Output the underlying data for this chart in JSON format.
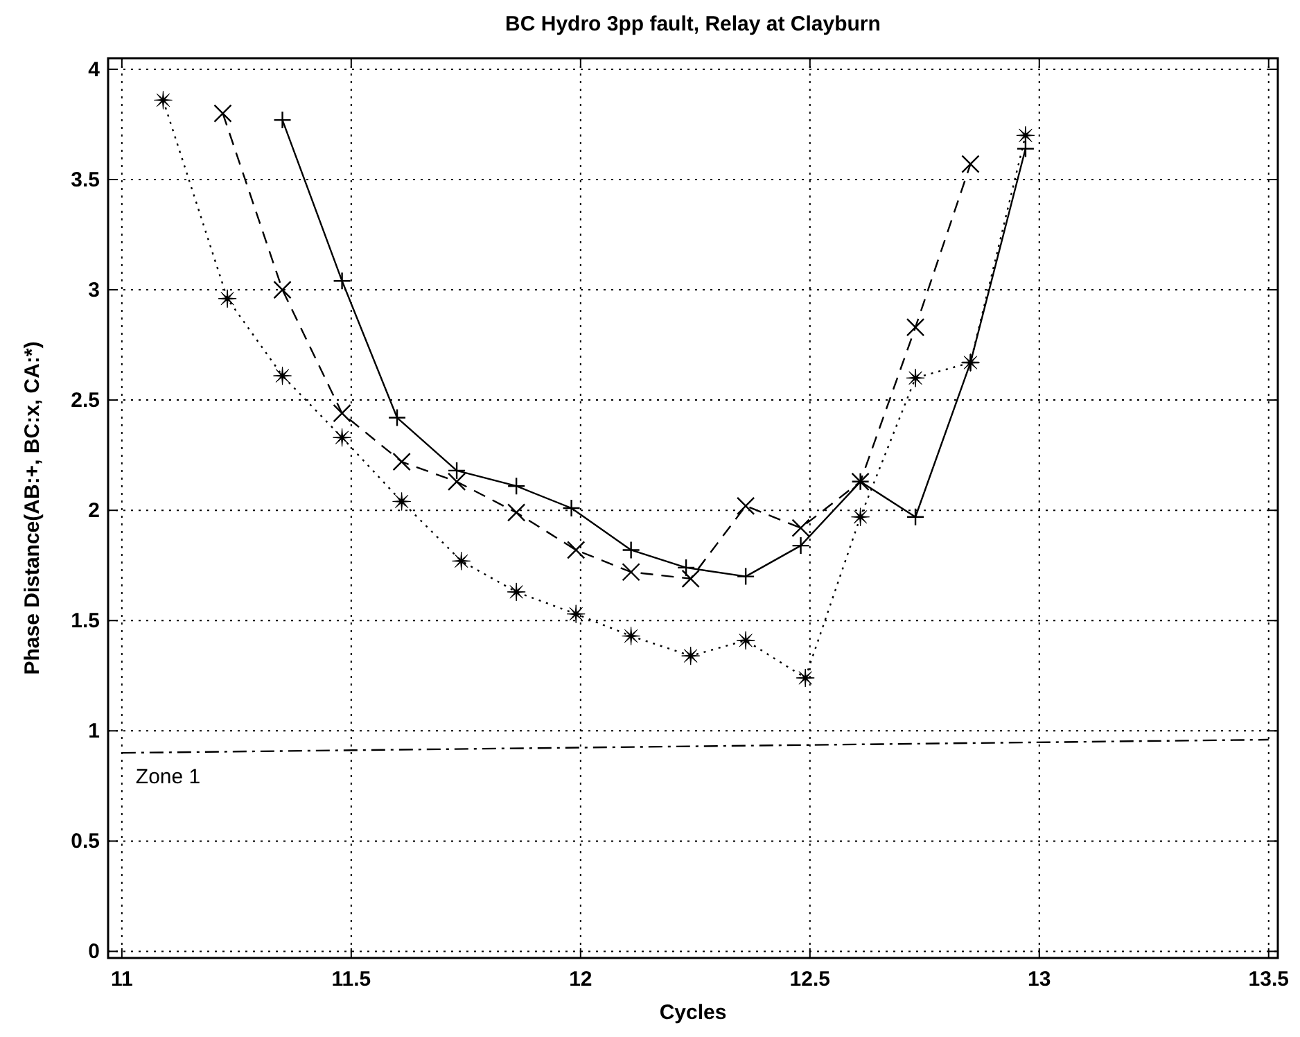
{
  "chart_data": {
    "type": "line",
    "title": "BC Hydro 3pp fault, Relay at Clayburn",
    "xlabel": "Cycles",
    "ylabel": "Phase Distance(AB:+, BC:x, CA:*)",
    "xlim": [
      10.97,
      13.52
    ],
    "ylim": [
      -0.03,
      4.05
    ],
    "xticks": [
      11,
      11.5,
      12,
      12.5,
      13,
      13.5
    ],
    "yticks": [
      0,
      0.5,
      1,
      1.5,
      2,
      2.5,
      3,
      3.5,
      4
    ],
    "grid": true,
    "series": [
      {
        "color": "#000000",
        "marker": "plus",
        "line_style": "solid",
        "x": [
          11.35,
          11.48,
          11.6,
          11.73,
          11.86,
          11.98,
          12.11,
          12.23,
          12.36,
          12.48,
          12.61,
          12.73,
          12.85,
          12.97
        ],
        "values": [
          3.77,
          3.04,
          2.42,
          2.18,
          2.11,
          2.01,
          1.82,
          1.74,
          1.7,
          1.84,
          2.13,
          1.97,
          2.67,
          3.64
        ]
      },
      {
        "color": "#000000",
        "marker": "cross",
        "line_style": "dashed",
        "x": [
          11.22,
          11.35,
          11.48,
          11.61,
          11.73,
          11.86,
          11.99,
          12.11,
          12.24,
          12.36,
          12.48,
          12.61,
          12.73,
          12.85
        ],
        "values": [
          3.8,
          3.0,
          2.44,
          2.22,
          2.13,
          1.99,
          1.82,
          1.72,
          1.69,
          2.02,
          1.92,
          2.13,
          2.83,
          3.57
        ]
      },
      {
        "color": "#000000",
        "marker": "star",
        "line_style": "dotted",
        "x": [
          11.09,
          11.23,
          11.35,
          11.48,
          11.61,
          11.74,
          11.86,
          11.99,
          12.11,
          12.24,
          12.36,
          12.49,
          12.61,
          12.73,
          12.85,
          12.97
        ],
        "values": [
          3.86,
          2.96,
          2.61,
          2.33,
          2.04,
          1.77,
          1.63,
          1.53,
          1.43,
          1.34,
          1.41,
          1.24,
          1.97,
          2.6,
          2.67,
          3.7
        ]
      },
      {
        "name": "Zone 1",
        "color": "#000000",
        "marker": "none",
        "line_style": "dashdot",
        "x": [
          11,
          13.5
        ],
        "values": [
          0.9,
          0.96
        ]
      }
    ]
  }
}
